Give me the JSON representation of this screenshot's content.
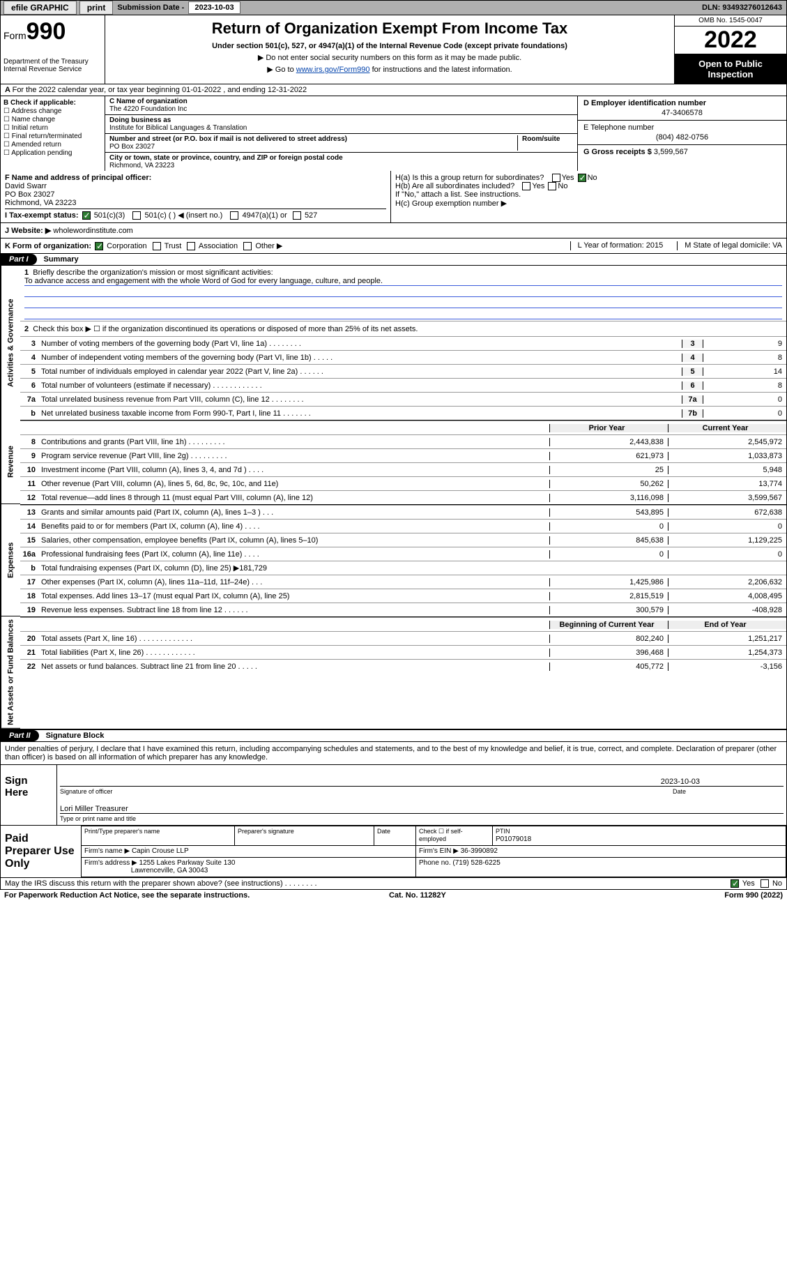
{
  "topbar": {
    "efile": "efile GRAPHIC",
    "print": "print",
    "sub_label": "Submission Date -",
    "sub_date": "2023-10-03",
    "dln": "DLN: 93493276012643"
  },
  "header": {
    "form_word": "Form",
    "form_num": "990",
    "title": "Return of Organization Exempt From Income Tax",
    "sub1": "Under section 501(c), 527, or 4947(a)(1) of the Internal Revenue Code (except private foundations)",
    "sub2": "▶ Do not enter social security numbers on this form as it may be made public.",
    "sub3_pre": "▶ Go to ",
    "sub3_link": "www.irs.gov/Form990",
    "sub3_post": " for instructions and the latest information.",
    "dept": "Department of the Treasury\nInternal Revenue Service",
    "omb": "OMB No. 1545-0047",
    "year": "2022",
    "open": "Open to Public Inspection"
  },
  "row_a": "For the 2022 calendar year, or tax year beginning 01-01-2022   , and ending 12-31-2022",
  "col_b": {
    "title": "B Check if applicable:",
    "opts": [
      "Address change",
      "Name change",
      "Initial return",
      "Final return/terminated",
      "Amended return",
      "Application pending"
    ]
  },
  "col_c": {
    "name_lbl": "C Name of organization",
    "name": "The 4220 Foundation Inc",
    "dba_lbl": "Doing business as",
    "dba": "Institute for Biblical Languages & Translation",
    "addr_lbl": "Number and street (or P.O. box if mail is not delivered to street address)",
    "room_lbl": "Room/suite",
    "addr": "PO Box 23027",
    "city_lbl": "City or town, state or province, country, and ZIP or foreign postal code",
    "city": "Richmond, VA  23223"
  },
  "col_d": {
    "ein_lbl": "D Employer identification number",
    "ein": "47-3406578",
    "tel_lbl": "E Telephone number",
    "tel": "(804) 482-0756",
    "gross_lbl": "G Gross receipts $",
    "gross": "3,599,567"
  },
  "row_f": {
    "lbl": "F  Name and address of principal officer:",
    "name": "David Swarr",
    "addr1": "PO Box 23027",
    "addr2": "Richmond, VA  23223"
  },
  "row_h": {
    "a": "H(a)  Is this a group return for subordinates?",
    "b": "H(b)  Are all subordinates included?",
    "b2": "If \"No,\" attach a list. See instructions.",
    "c": "H(c)  Group exemption number ▶",
    "yes": "Yes",
    "no": "No"
  },
  "row_i": {
    "lbl": "I   Tax-exempt status:",
    "o1": "501(c)(3)",
    "o2": "501(c) (  ) ◀ (insert no.)",
    "o3": "4947(a)(1) or",
    "o4": "527"
  },
  "row_j": {
    "lbl": "J   Website: ▶ ",
    "val": "wholewordinstitute.com"
  },
  "row_k": {
    "lbl": "K Form of organization:",
    "o1": "Corporation",
    "o2": "Trust",
    "o3": "Association",
    "o4": "Other ▶",
    "l": "L Year of formation: 2015",
    "m": "M State of legal domicile: VA"
  },
  "part1": {
    "hdr": "Part I",
    "ttl": "Summary"
  },
  "brief": {
    "n": "1",
    "lbl": "Briefly describe the organization's mission or most significant activities:",
    "txt": "To advance access and engagement with the whole Word of God for every language, culture, and people."
  },
  "line2": {
    "n": "2",
    "t": "Check this box ▶ ☐  if the organization discontinued its operations or disposed of more than 25% of its net assets."
  },
  "gov_lines": [
    {
      "n": "3",
      "t": "Number of voting members of the governing body (Part VI, line 1a)  .    .    .    .    .    .    .    .",
      "bn": "3",
      "bv": "9"
    },
    {
      "n": "4",
      "t": "Number of independent voting members of the governing body (Part VI, line 1b)  .    .    .    .    .",
      "bn": "4",
      "bv": "8"
    },
    {
      "n": "5",
      "t": "Total number of individuals employed in calendar year 2022 (Part V, line 2a)  .    .    .    .    .    .",
      "bn": "5",
      "bv": "14"
    },
    {
      "n": "6",
      "t": "Total number of volunteers (estimate if necessary)  .    .    .    .    .    .    .    .    .    .    .    .",
      "bn": "6",
      "bv": "8"
    },
    {
      "n": "7a",
      "t": "Total unrelated business revenue from Part VIII, column (C), line 12  .    .    .    .    .    .    .    .",
      "bn": "7a",
      "bv": "0"
    },
    {
      "n": "b",
      "t": "Net unrelated business taxable income from Form 990-T, Part I, line 11  .    .    .    .    .    .    .",
      "bn": "7b",
      "bv": "0"
    }
  ],
  "rev_hdr": {
    "c1": "Prior Year",
    "c2": "Current Year"
  },
  "rev_lines": [
    {
      "n": "8",
      "t": "Contributions and grants (Part VIII, line 1h)  .    .    .    .    .    .    .    .    .",
      "c1": "2,443,838",
      "c2": "2,545,972"
    },
    {
      "n": "9",
      "t": "Program service revenue (Part VIII, line 2g)  .    .    .    .    .    .    .    .    .",
      "c1": "621,973",
      "c2": "1,033,873"
    },
    {
      "n": "10",
      "t": "Investment income (Part VIII, column (A), lines 3, 4, and 7d )  .    .    .    .",
      "c1": "25",
      "c2": "5,948"
    },
    {
      "n": "11",
      "t": "Other revenue (Part VIII, column (A), lines 5, 6d, 8c, 9c, 10c, and 11e)",
      "c1": "50,262",
      "c2": "13,774"
    },
    {
      "n": "12",
      "t": "Total revenue—add lines 8 through 11 (must equal Part VIII, column (A), line 12)",
      "c1": "3,116,098",
      "c2": "3,599,567"
    }
  ],
  "exp_lines": [
    {
      "n": "13",
      "t": "Grants and similar amounts paid (Part IX, column (A), lines 1–3 )  .    .    .",
      "c1": "543,895",
      "c2": "672,638"
    },
    {
      "n": "14",
      "t": "Benefits paid to or for members (Part IX, column (A), line 4)  .    .    .    .",
      "c1": "0",
      "c2": "0"
    },
    {
      "n": "15",
      "t": "Salaries, other compensation, employee benefits (Part IX, column (A), lines 5–10)",
      "c1": "845,638",
      "c2": "1,129,225"
    },
    {
      "n": "16a",
      "t": "Professional fundraising fees (Part IX, column (A), line 11e)  .    .    .    .",
      "c1": "0",
      "c2": "0"
    },
    {
      "n": "b",
      "t": "Total fundraising expenses (Part IX, column (D), line 25) ▶181,729",
      "c1": "shade",
      "c2": "shade"
    },
    {
      "n": "17",
      "t": "Other expenses (Part IX, column (A), lines 11a–11d, 11f–24e)  .    .    .",
      "c1": "1,425,986",
      "c2": "2,206,632"
    },
    {
      "n": "18",
      "t": "Total expenses. Add lines 13–17 (must equal Part IX, column (A), line 25)",
      "c1": "2,815,519",
      "c2": "4,008,495"
    },
    {
      "n": "19",
      "t": "Revenue less expenses. Subtract line 18 from line 12  .    .    .    .    .    .",
      "c1": "300,579",
      "c2": "-408,928"
    }
  ],
  "na_hdr": {
    "c1": "Beginning of Current Year",
    "c2": "End of Year"
  },
  "na_lines": [
    {
      "n": "20",
      "t": "Total assets (Part X, line 16)  .    .    .    .    .    .    .    .    .    .    .    .    .",
      "c1": "802,240",
      "c2": "1,251,217"
    },
    {
      "n": "21",
      "t": "Total liabilities (Part X, line 26)  .    .    .    .    .    .    .    .    .    .    .    .",
      "c1": "396,468",
      "c2": "1,254,373"
    },
    {
      "n": "22",
      "t": "Net assets or fund balances. Subtract line 21 from line 20  .    .    .    .    .",
      "c1": "405,772",
      "c2": "-3,156"
    }
  ],
  "vtabs": {
    "gov": "Activities & Governance",
    "rev": "Revenue",
    "exp": "Expenses",
    "na": "Net Assets or Fund Balances"
  },
  "part2": {
    "hdr": "Part II",
    "ttl": "Signature Block"
  },
  "penalty": "Under penalties of perjury, I declare that I have examined this return, including accompanying schedules and statements, and to the best of my knowledge and belief, it is true, correct, and complete. Declaration of preparer (other than officer) is based on all information of which preparer has any knowledge.",
  "sign": {
    "lab": "Sign Here",
    "sig_lbl": "Signature of officer",
    "date_lbl": "Date",
    "date": "2023-10-03",
    "name": "Lori Miller  Treasurer",
    "name_lbl": "Type or print name and title"
  },
  "prep": {
    "lab": "Paid Preparer Use Only",
    "h1": "Print/Type preparer's name",
    "h2": "Preparer's signature",
    "h3": "Date",
    "h4": "Check ☐ if self-employed",
    "h5": "PTIN",
    "ptin": "P01079018",
    "firm_lbl": "Firm's name    ▶",
    "firm": "Capin Crouse LLP",
    "ein_lbl": "Firm's EIN ▶",
    "ein": "36-3990892",
    "addr_lbl": "Firm's address ▶",
    "addr1": "1255 Lakes Parkway Suite 130",
    "addr2": "Lawrenceville, GA  30043",
    "ph_lbl": "Phone no.",
    "ph": "(719) 528-6225"
  },
  "foot": {
    "q": "May the IRS discuss this return with the preparer shown above? (see instructions)  .    .    .    .    .    .    .    .",
    "yes": "Yes",
    "no": "No",
    "pra": "For Paperwork Reduction Act Notice, see the separate instructions.",
    "cat": "Cat. No. 11282Y",
    "form": "Form 990 (2022)"
  }
}
